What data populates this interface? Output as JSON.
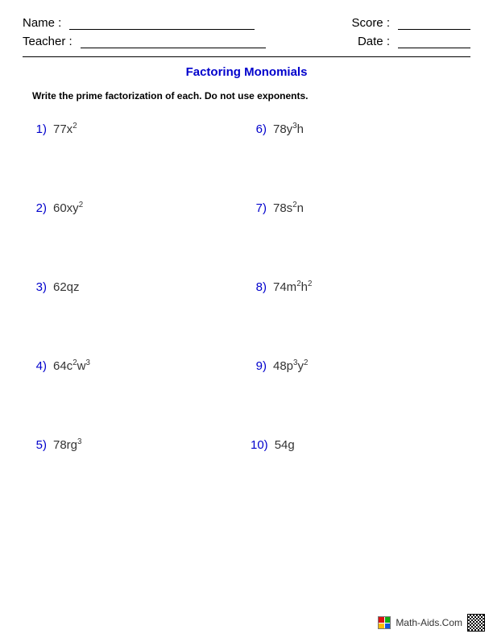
{
  "header": {
    "name_label": "Name :",
    "teacher_label": "Teacher :",
    "score_label": "Score :",
    "date_label": "Date :"
  },
  "title": "Factoring Monomials",
  "instructions": "Write the prime factorization of each. Do not use exponents.",
  "problems": [
    {
      "num": "1)",
      "coef": "77",
      "terms": [
        {
          "v": "x",
          "e": "2"
        }
      ]
    },
    {
      "num": "6)",
      "coef": "78",
      "terms": [
        {
          "v": "y",
          "e": "3"
        },
        {
          "v": "h",
          "e": ""
        }
      ]
    },
    {
      "num": "2)",
      "coef": "60",
      "terms": [
        {
          "v": "x",
          "e": ""
        },
        {
          "v": "y",
          "e": "2"
        }
      ]
    },
    {
      "num": "7)",
      "coef": "78",
      "terms": [
        {
          "v": "s",
          "e": "2"
        },
        {
          "v": "n",
          "e": ""
        }
      ]
    },
    {
      "num": "3)",
      "coef": "62",
      "terms": [
        {
          "v": "q",
          "e": ""
        },
        {
          "v": "z",
          "e": ""
        }
      ]
    },
    {
      "num": "8)",
      "coef": "74",
      "terms": [
        {
          "v": "m",
          "e": "2"
        },
        {
          "v": "h",
          "e": "2"
        }
      ]
    },
    {
      "num": "4)",
      "coef": "64",
      "terms": [
        {
          "v": "c",
          "e": "2"
        },
        {
          "v": "w",
          "e": "3"
        }
      ]
    },
    {
      "num": "9)",
      "coef": "48",
      "terms": [
        {
          "v": "p",
          "e": "3"
        },
        {
          "v": "y",
          "e": "2"
        }
      ]
    },
    {
      "num": "5)",
      "coef": "78",
      "terms": [
        {
          "v": "r",
          "e": ""
        },
        {
          "v": "g",
          "e": "3"
        }
      ]
    },
    {
      "num": "10)",
      "coef": "54",
      "terms": [
        {
          "v": "g",
          "e": ""
        }
      ]
    }
  ],
  "footer": {
    "site": "Math-Aids.Com",
    "logo_colors": [
      "#d11",
      "#1a1",
      "#fb0",
      "#15d"
    ]
  },
  "colors": {
    "accent": "#0000cc",
    "text": "#333333",
    "background": "#ffffff"
  }
}
